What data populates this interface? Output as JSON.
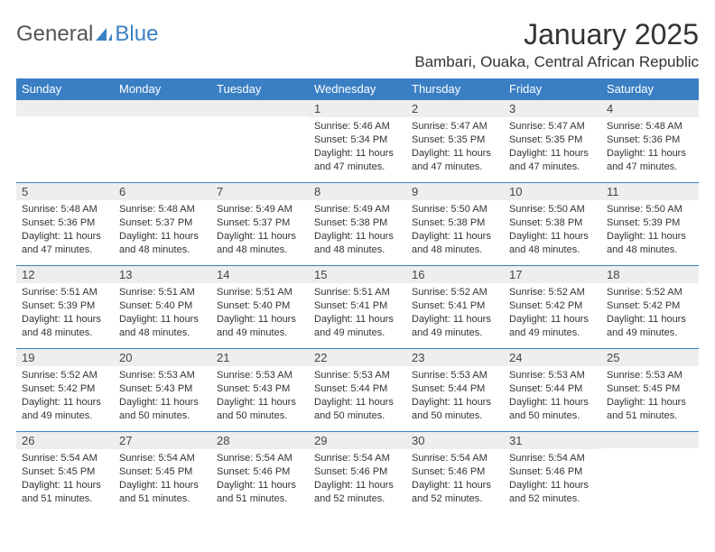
{
  "logo": {
    "general": "General",
    "blue": "Blue"
  },
  "title": "January 2025",
  "location": "Bambari, Ouaka, Central African Republic",
  "colors": {
    "accent": "#3a7fc4",
    "header_text": "#ffffff",
    "daynum_bg": "#eeeeee",
    "text": "#333333",
    "bg": "#ffffff"
  },
  "week_header": [
    "Sunday",
    "Monday",
    "Tuesday",
    "Wednesday",
    "Thursday",
    "Friday",
    "Saturday"
  ],
  "weeks": [
    [
      {
        "n": "",
        "sr": "",
        "ss": "",
        "dl": ""
      },
      {
        "n": "",
        "sr": "",
        "ss": "",
        "dl": ""
      },
      {
        "n": "",
        "sr": "",
        "ss": "",
        "dl": ""
      },
      {
        "n": "1",
        "sr": "Sunrise: 5:46 AM",
        "ss": "Sunset: 5:34 PM",
        "dl": "Daylight: 11 hours and 47 minutes."
      },
      {
        "n": "2",
        "sr": "Sunrise: 5:47 AM",
        "ss": "Sunset: 5:35 PM",
        "dl": "Daylight: 11 hours and 47 minutes."
      },
      {
        "n": "3",
        "sr": "Sunrise: 5:47 AM",
        "ss": "Sunset: 5:35 PM",
        "dl": "Daylight: 11 hours and 47 minutes."
      },
      {
        "n": "4",
        "sr": "Sunrise: 5:48 AM",
        "ss": "Sunset: 5:36 PM",
        "dl": "Daylight: 11 hours and 47 minutes."
      }
    ],
    [
      {
        "n": "5",
        "sr": "Sunrise: 5:48 AM",
        "ss": "Sunset: 5:36 PM",
        "dl": "Daylight: 11 hours and 47 minutes."
      },
      {
        "n": "6",
        "sr": "Sunrise: 5:48 AM",
        "ss": "Sunset: 5:37 PM",
        "dl": "Daylight: 11 hours and 48 minutes."
      },
      {
        "n": "7",
        "sr": "Sunrise: 5:49 AM",
        "ss": "Sunset: 5:37 PM",
        "dl": "Daylight: 11 hours and 48 minutes."
      },
      {
        "n": "8",
        "sr": "Sunrise: 5:49 AM",
        "ss": "Sunset: 5:38 PM",
        "dl": "Daylight: 11 hours and 48 minutes."
      },
      {
        "n": "9",
        "sr": "Sunrise: 5:50 AM",
        "ss": "Sunset: 5:38 PM",
        "dl": "Daylight: 11 hours and 48 minutes."
      },
      {
        "n": "10",
        "sr": "Sunrise: 5:50 AM",
        "ss": "Sunset: 5:38 PM",
        "dl": "Daylight: 11 hours and 48 minutes."
      },
      {
        "n": "11",
        "sr": "Sunrise: 5:50 AM",
        "ss": "Sunset: 5:39 PM",
        "dl": "Daylight: 11 hours and 48 minutes."
      }
    ],
    [
      {
        "n": "12",
        "sr": "Sunrise: 5:51 AM",
        "ss": "Sunset: 5:39 PM",
        "dl": "Daylight: 11 hours and 48 minutes."
      },
      {
        "n": "13",
        "sr": "Sunrise: 5:51 AM",
        "ss": "Sunset: 5:40 PM",
        "dl": "Daylight: 11 hours and 48 minutes."
      },
      {
        "n": "14",
        "sr": "Sunrise: 5:51 AM",
        "ss": "Sunset: 5:40 PM",
        "dl": "Daylight: 11 hours and 49 minutes."
      },
      {
        "n": "15",
        "sr": "Sunrise: 5:51 AM",
        "ss": "Sunset: 5:41 PM",
        "dl": "Daylight: 11 hours and 49 minutes."
      },
      {
        "n": "16",
        "sr": "Sunrise: 5:52 AM",
        "ss": "Sunset: 5:41 PM",
        "dl": "Daylight: 11 hours and 49 minutes."
      },
      {
        "n": "17",
        "sr": "Sunrise: 5:52 AM",
        "ss": "Sunset: 5:42 PM",
        "dl": "Daylight: 11 hours and 49 minutes."
      },
      {
        "n": "18",
        "sr": "Sunrise: 5:52 AM",
        "ss": "Sunset: 5:42 PM",
        "dl": "Daylight: 11 hours and 49 minutes."
      }
    ],
    [
      {
        "n": "19",
        "sr": "Sunrise: 5:52 AM",
        "ss": "Sunset: 5:42 PM",
        "dl": "Daylight: 11 hours and 49 minutes."
      },
      {
        "n": "20",
        "sr": "Sunrise: 5:53 AM",
        "ss": "Sunset: 5:43 PM",
        "dl": "Daylight: 11 hours and 50 minutes."
      },
      {
        "n": "21",
        "sr": "Sunrise: 5:53 AM",
        "ss": "Sunset: 5:43 PM",
        "dl": "Daylight: 11 hours and 50 minutes."
      },
      {
        "n": "22",
        "sr": "Sunrise: 5:53 AM",
        "ss": "Sunset: 5:44 PM",
        "dl": "Daylight: 11 hours and 50 minutes."
      },
      {
        "n": "23",
        "sr": "Sunrise: 5:53 AM",
        "ss": "Sunset: 5:44 PM",
        "dl": "Daylight: 11 hours and 50 minutes."
      },
      {
        "n": "24",
        "sr": "Sunrise: 5:53 AM",
        "ss": "Sunset: 5:44 PM",
        "dl": "Daylight: 11 hours and 50 minutes."
      },
      {
        "n": "25",
        "sr": "Sunrise: 5:53 AM",
        "ss": "Sunset: 5:45 PM",
        "dl": "Daylight: 11 hours and 51 minutes."
      }
    ],
    [
      {
        "n": "26",
        "sr": "Sunrise: 5:54 AM",
        "ss": "Sunset: 5:45 PM",
        "dl": "Daylight: 11 hours and 51 minutes."
      },
      {
        "n": "27",
        "sr": "Sunrise: 5:54 AM",
        "ss": "Sunset: 5:45 PM",
        "dl": "Daylight: 11 hours and 51 minutes."
      },
      {
        "n": "28",
        "sr": "Sunrise: 5:54 AM",
        "ss": "Sunset: 5:46 PM",
        "dl": "Daylight: 11 hours and 51 minutes."
      },
      {
        "n": "29",
        "sr": "Sunrise: 5:54 AM",
        "ss": "Sunset: 5:46 PM",
        "dl": "Daylight: 11 hours and 52 minutes."
      },
      {
        "n": "30",
        "sr": "Sunrise: 5:54 AM",
        "ss": "Sunset: 5:46 PM",
        "dl": "Daylight: 11 hours and 52 minutes."
      },
      {
        "n": "31",
        "sr": "Sunrise: 5:54 AM",
        "ss": "Sunset: 5:46 PM",
        "dl": "Daylight: 11 hours and 52 minutes."
      },
      {
        "n": "",
        "sr": "",
        "ss": "",
        "dl": ""
      }
    ]
  ]
}
